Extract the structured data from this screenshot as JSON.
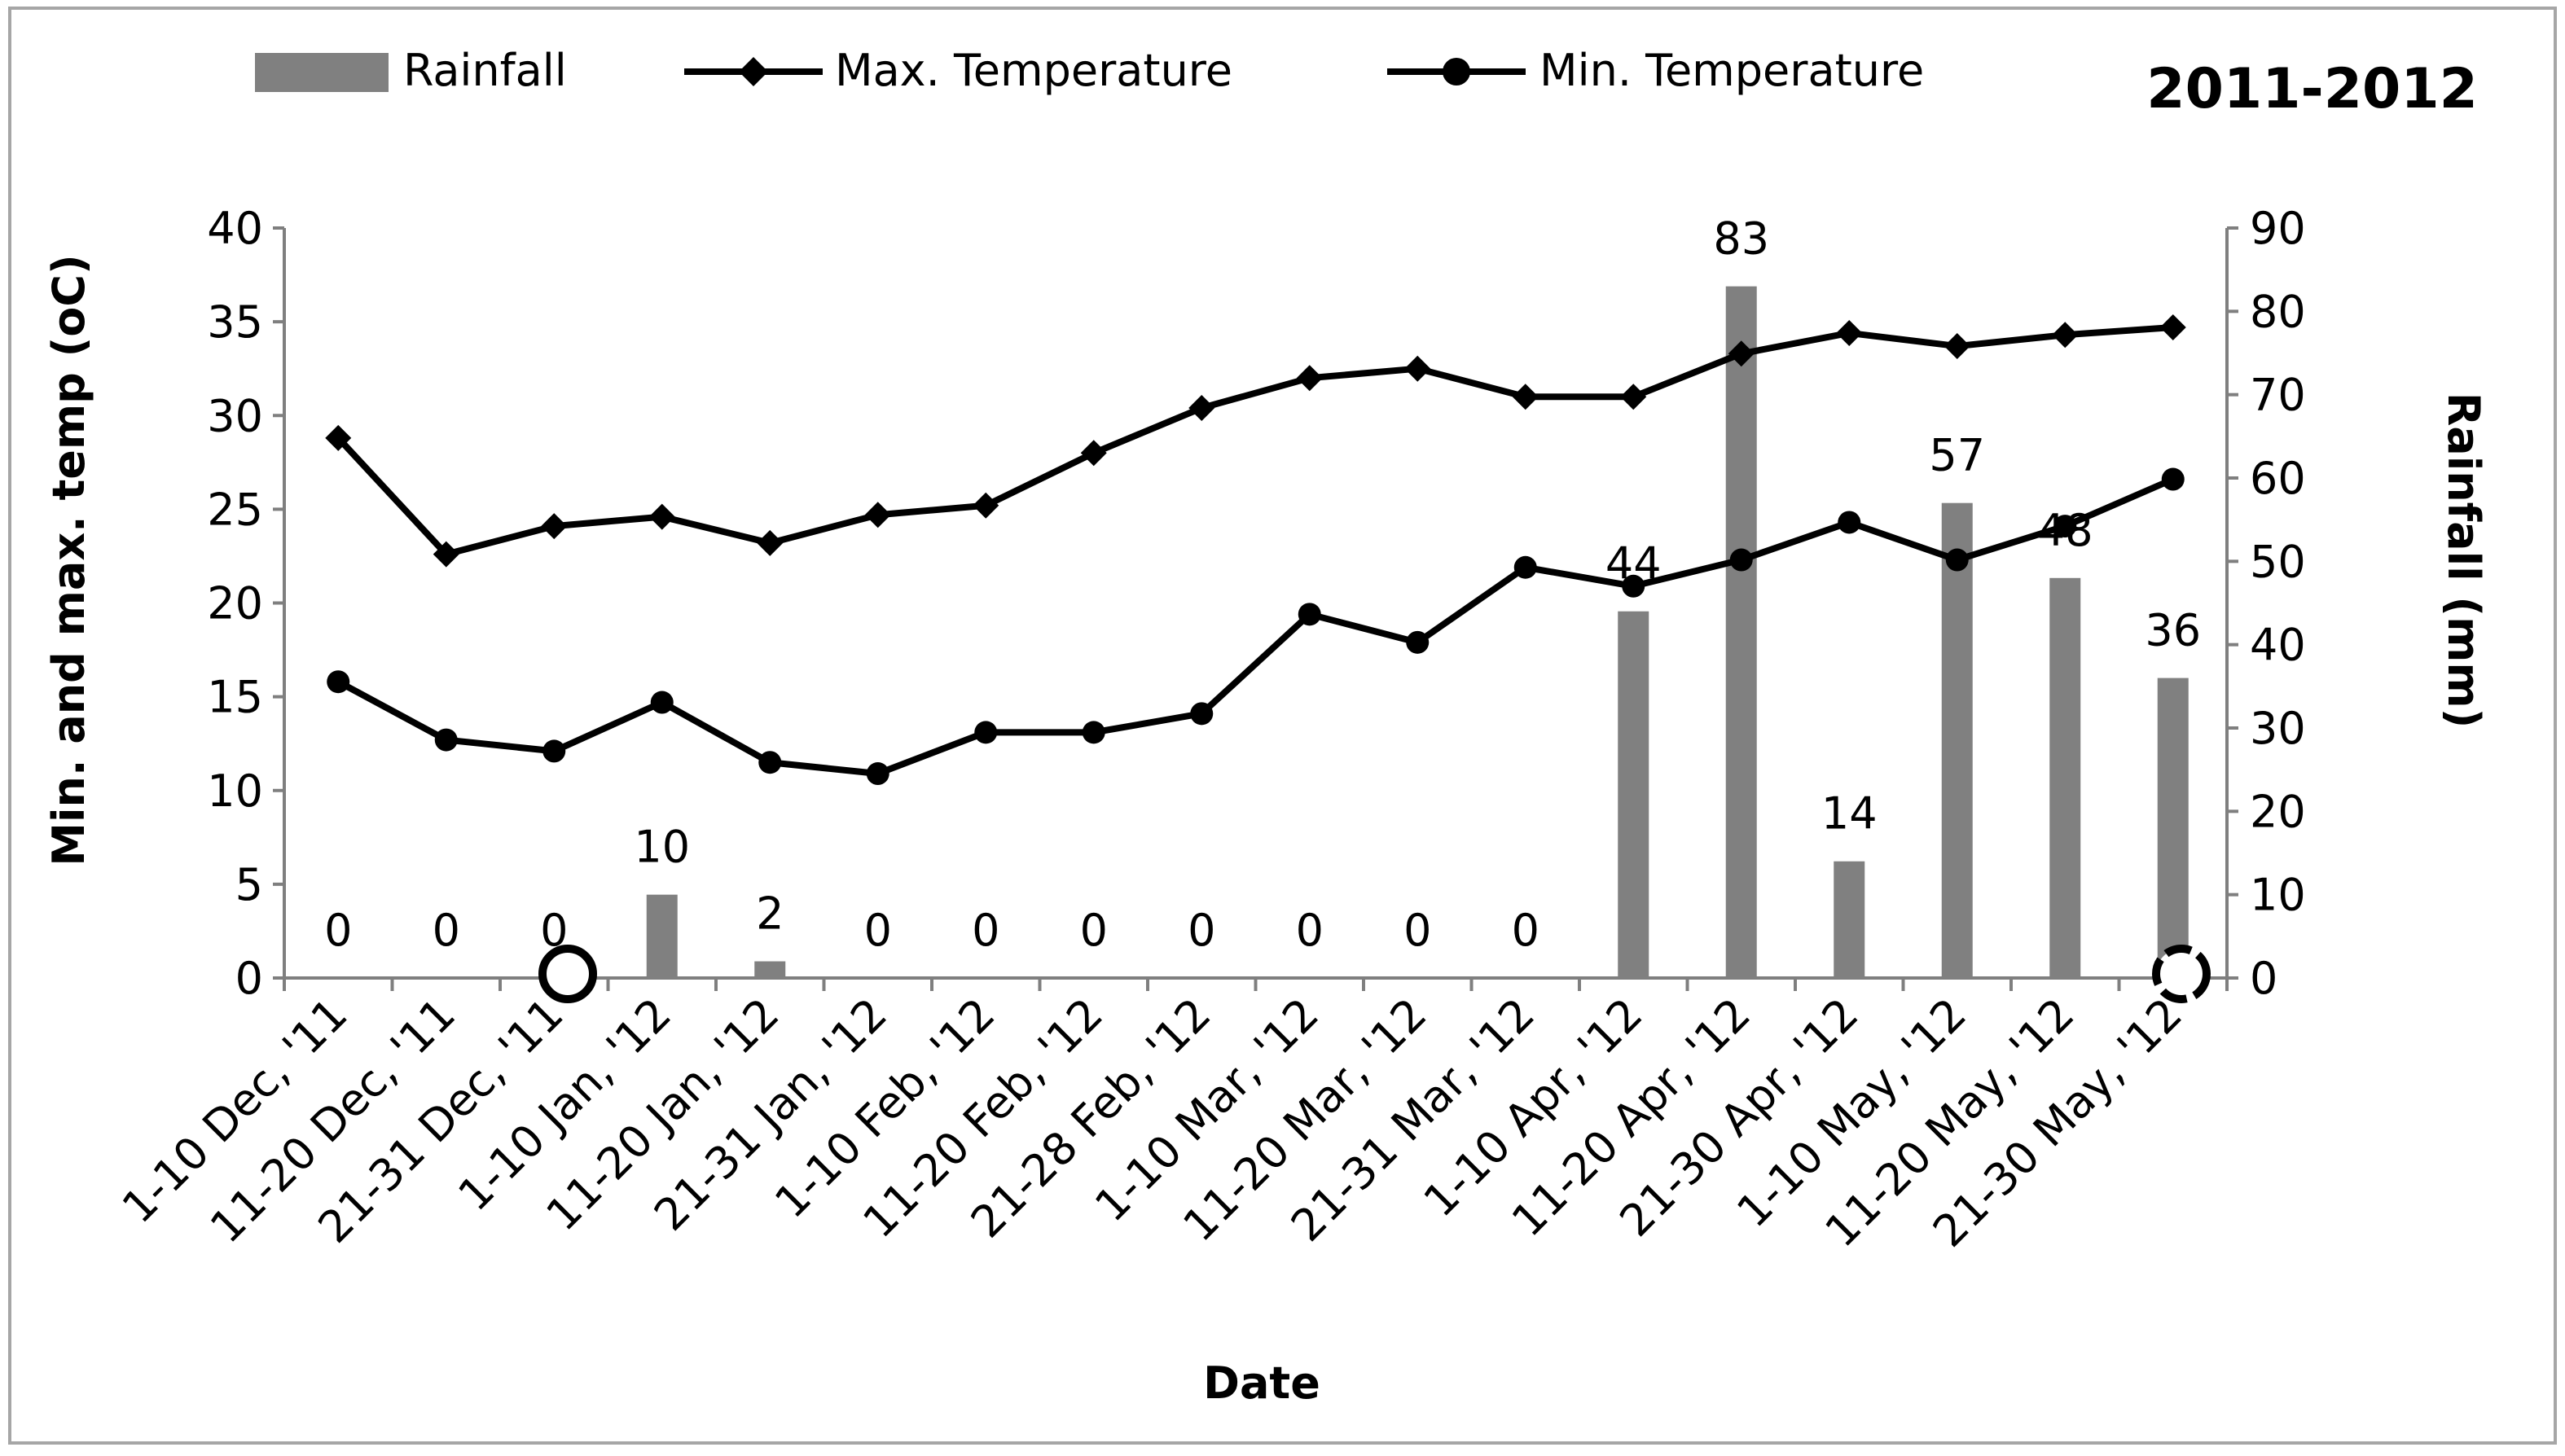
{
  "chart_data": {
    "type": "bar+line",
    "title": "2011-2012",
    "xlabel": "Date",
    "ylabel": "Min. and max. temp (oC)",
    "y2label": "Rainfall (mm)",
    "ylim": [
      0,
      40
    ],
    "y2lim": [
      0,
      90
    ],
    "yticks": [
      "0",
      "5",
      "10",
      "15",
      "20",
      "25",
      "30",
      "35",
      "40"
    ],
    "y2ticks": [
      "0",
      "10",
      "20",
      "30",
      "40",
      "50",
      "60",
      "70",
      "80",
      "90"
    ],
    "legend_position": "top",
    "categories": [
      "1-10 Dec, '11",
      "11-20 Dec, '11",
      "21-31 Dec, '11",
      "1-10 Jan, '12",
      "11-20 Jan, '12",
      "21-31 Jan, '12",
      "1-10 Feb, '12",
      "11-20 Feb, '12",
      "21-28 Feb, '12",
      "1-10 Mar, '12",
      "11-20 Mar, '12",
      "21-31 Mar, '12",
      "1-10 Apr, '12",
      "11-20 Apr, '12",
      "21-30 Apr, '12",
      "1-10 May, '12",
      "11-20 May, '12",
      "21-30 May, '12"
    ],
    "series": [
      {
        "name": "Rainfall",
        "type": "bar",
        "axis": "right",
        "color": "#808080",
        "values": [
          0,
          0,
          0,
          10,
          2,
          0,
          0,
          0,
          0,
          0,
          0,
          0,
          44,
          83,
          14,
          57,
          48,
          36
        ],
        "labels": [
          "0",
          "0",
          "0",
          "10",
          "2",
          "0",
          "0",
          "0",
          "0",
          "0",
          "0",
          "0",
          "44",
          "83",
          "14",
          "57",
          "48",
          "36"
        ]
      },
      {
        "name": "Max. Temperature",
        "type": "line",
        "marker": "diamond",
        "axis": "left",
        "color": "#000000",
        "values": [
          28.8,
          22.6,
          24.1,
          24.6,
          23.2,
          24.7,
          25.2,
          28.0,
          30.4,
          32.0,
          32.5,
          31.0,
          31.0,
          33.3,
          34.4,
          33.7,
          34.3,
          34.7
        ]
      },
      {
        "name": "Min. Temperature",
        "type": "line",
        "marker": "circle",
        "axis": "left",
        "color": "#000000",
        "values": [
          15.8,
          12.7,
          12.1,
          14.7,
          11.5,
          10.9,
          13.1,
          13.1,
          14.1,
          19.4,
          17.9,
          21.9,
          20.9,
          22.3,
          24.3,
          22.3,
          24.1,
          26.6
        ]
      }
    ]
  }
}
